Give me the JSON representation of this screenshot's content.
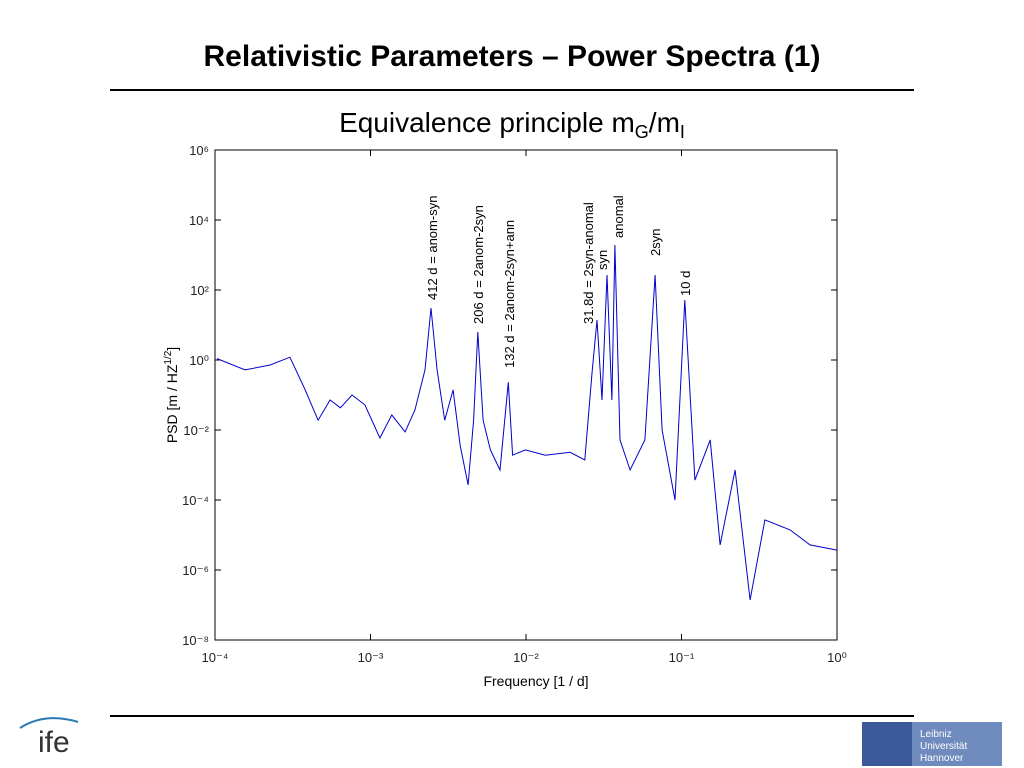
{
  "slide": {
    "title": "Relativistic Parameters – Power Spectra (1)",
    "subtitle_parts": [
      "Equivalence principle m",
      "G",
      "/m",
      "I"
    ],
    "logo_left": "ife",
    "logo_right": [
      "Leibniz",
      "Universität",
      "Hannover"
    ]
  },
  "chart_data": {
    "type": "line",
    "log_x": true,
    "log_y": true,
    "grid": false,
    "color": "#0000cc",
    "xlabel": "Frequency [1 / d]",
    "ylabel_parts": [
      "PSD [m / HZ",
      "1/2",
      "]"
    ],
    "xlim": [
      0.0001,
      1
    ],
    "ylim": [
      1e-08,
      1000000
    ],
    "xticks": [
      {
        "value": 0.0001,
        "label": "10⁻⁴"
      },
      {
        "value": 0.001,
        "label": "10⁻³"
      },
      {
        "value": 0.01,
        "label": "10⁻²"
      },
      {
        "value": 0.1,
        "label": "10⁻¹"
      },
      {
        "value": 1,
        "label": "10⁰"
      }
    ],
    "yticks": [
      {
        "value": 1e-08,
        "label": "10⁻⁸"
      },
      {
        "value": 1e-06,
        "label": "10⁻⁶"
      },
      {
        "value": 0.0001,
        "label": "10⁻⁴"
      },
      {
        "value": 0.01,
        "label": "10⁻²"
      },
      {
        "value": 1,
        "label": "10⁰"
      },
      {
        "value": 100,
        "label": "10²"
      },
      {
        "value": 10000,
        "label": "10⁴"
      },
      {
        "value": 1000000,
        "label": "10⁶"
      }
    ],
    "annotations": [
      "412 d = anom-syn",
      "206 d = 2anom-2syn",
      "132 d = 2anom-2syn+ann",
      "31.8d = 2syn-anomal",
      "syn",
      "anomal",
      "2syn",
      "10 d"
    ],
    "x": [
      0.000103,
      0.000156,
      0.000226,
      0.000303,
      0.00038,
      0.00046,
      0.00055,
      0.00064,
      0.00076,
      0.00092,
      0.00115,
      0.00137,
      0.00167,
      0.00193,
      0.00224,
      0.00245,
      0.00268,
      0.003,
      0.0034,
      0.00377,
      0.00424,
      0.0046,
      0.0049,
      0.0053,
      0.0059,
      0.0068,
      0.0077,
      0.0082,
      0.0099,
      0.0133,
      0.0192,
      0.0239,
      0.0266,
      0.0286,
      0.0308,
      0.0332,
      0.0357,
      0.0373,
      0.0402,
      0.0467,
      0.0582,
      0.0676,
      0.075,
      0.0908,
      0.105,
      0.122,
      0.153,
      0.177,
      0.221,
      0.276,
      0.344,
      0.499,
      0.67,
      1
    ],
    "values": [
      1.1,
      0.52,
      0.72,
      1.2,
      0.14,
      0.019,
      0.072,
      0.043,
      0.1,
      0.052,
      0.0059,
      0.027,
      0.0088,
      0.037,
      0.52,
      30.6,
      0.52,
      0.019,
      0.14,
      0.0037,
      0.00027,
      0.019,
      6.3,
      0.019,
      0.0027,
      0.00072,
      0.23,
      0.0019,
      0.0027,
      0.0019,
      0.0023,
      0.0014,
      0.45,
      13.9,
      0.072,
      268,
      0.072,
      1930,
      0.0052,
      0.00072,
      0.0052,
      268,
      0.01,
      0.0001,
      51.8,
      0.00037,
      0.0052,
      5.2e-06,
      0.00072,
      1.4e-07,
      2.7e-05,
      1.4e-05,
      5.2e-06,
      3.7e-06
    ]
  }
}
